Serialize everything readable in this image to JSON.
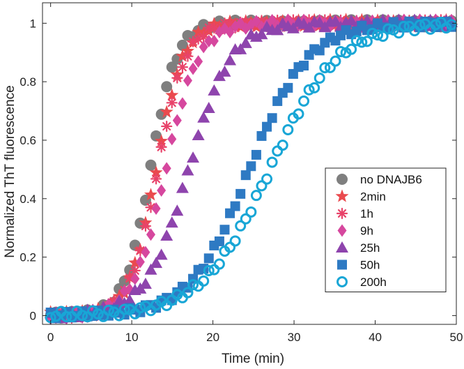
{
  "chart_data": {
    "type": "scatter",
    "title": "",
    "xlabel": "Time (min)",
    "ylabel": "Normalized ThT fluorescence",
    "xlim": [
      -1,
      50
    ],
    "ylim": [
      -0.03,
      1.07
    ],
    "xticks": [
      0,
      10,
      20,
      30,
      40,
      50
    ],
    "yticks": [
      0,
      0.2,
      0.4,
      0.6,
      0.8,
      1
    ],
    "ytick_labels": [
      "0",
      "0.2",
      "0.4",
      "0.6",
      "0.8",
      "1"
    ],
    "grid": false,
    "legend_position": "right",
    "colors": {
      "axis": "#262626",
      "no_dnajb6": "#7f7f7f",
      "2min": "#ea4a4e",
      "1h": "#e8436a",
      "9h": "#d6479e",
      "25h": "#8e44ad",
      "50h": "#2e7ac3",
      "200h": "#18a6d6"
    },
    "series": [
      {
        "name": "no DNAJB6",
        "marker": "circle",
        "color": "#7f7f7f",
        "t_half": 12.3,
        "k": 0.63
      },
      {
        "name": "2min",
        "marker": "star",
        "color": "#ea4a4e",
        "t_half": 13.0,
        "k": 0.6
      },
      {
        "name": "1h",
        "marker": "asterisk",
        "color": "#e8436a",
        "t_half": 13.2,
        "k": 0.58
      },
      {
        "name": "9h",
        "marker": "diamond",
        "color": "#d6479e",
        "t_half": 14.2,
        "k": 0.5
      },
      {
        "name": "25h",
        "marker": "triangle",
        "color": "#8e44ad",
        "t_half": 17.0,
        "k": 0.38
      },
      {
        "name": "50h",
        "marker": "square",
        "color": "#2e7ac3",
        "t_half": 24.5,
        "k": 0.28
      },
      {
        "name": "200h",
        "marker": "ring",
        "color": "#18a6d6",
        "t_half": 27.0,
        "k": 0.24
      }
    ]
  }
}
